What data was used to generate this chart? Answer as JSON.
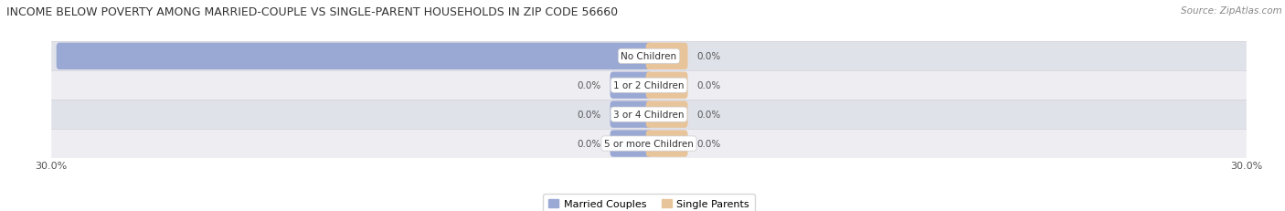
{
  "title": "INCOME BELOW POVERTY AMONG MARRIED-COUPLE VS SINGLE-PARENT HOUSEHOLDS IN ZIP CODE 56660",
  "source": "Source: ZipAtlas.com",
  "categories": [
    "No Children",
    "1 or 2 Children",
    "3 or 4 Children",
    "5 or more Children"
  ],
  "married_values": [
    29.6,
    0.0,
    0.0,
    0.0
  ],
  "single_values": [
    0.0,
    0.0,
    0.0,
    0.0
  ],
  "married_color": "#9aa8d4",
  "single_color": "#e8c49a",
  "row_bg_light": "#ededf2",
  "row_bg_dark": "#e0e2ea",
  "row_border": "#d0d0d8",
  "xlim": 30.0,
  "title_fontsize": 9.0,
  "source_fontsize": 7.5,
  "axis_label_fontsize": 8,
  "bar_label_fontsize": 7.5,
  "category_fontsize": 7.5,
  "legend_fontsize": 8,
  "bar_height": 0.62,
  "min_bar_width": 1.8
}
